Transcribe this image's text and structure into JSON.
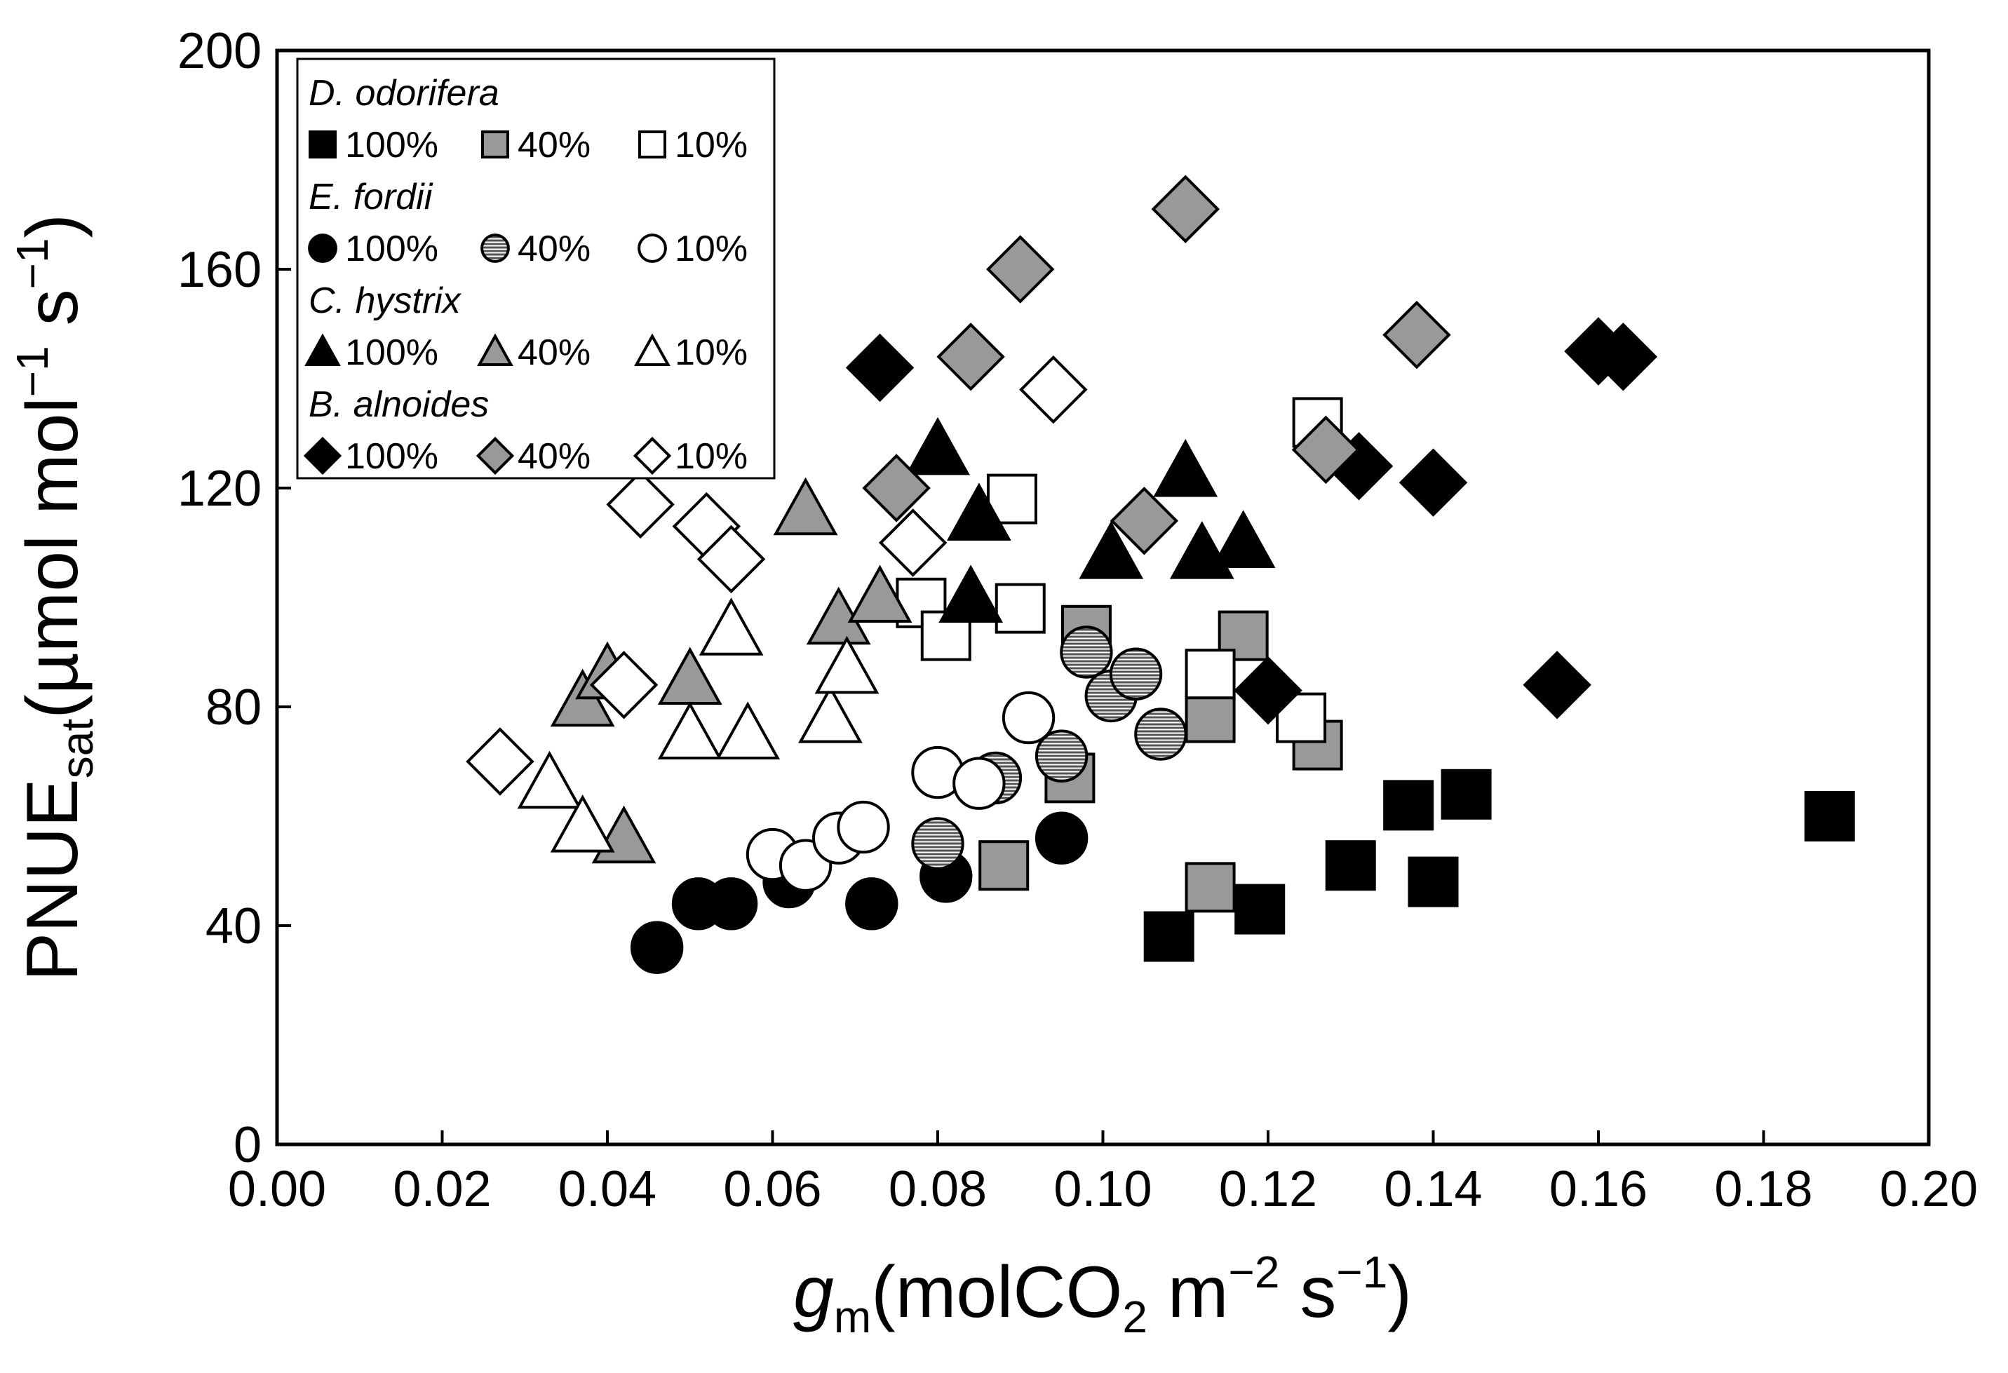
{
  "chart_data": {
    "type": "scatter",
    "title": "",
    "xlabel": {
      "main": "g",
      "sub": "m",
      "rest1": "(molCO",
      "sub2": "2",
      "rest2": " m",
      "sup1": "−2",
      "rest3": " s",
      "sup2": "−1",
      "close": ")"
    },
    "ylabel": {
      "main": "PNUE",
      "sub": "sat",
      "rest1": "(µmol mol",
      "sup1": "−1",
      "rest2": " s",
      "sup2": "−1",
      "close": ")"
    },
    "xlim": [
      0,
      0.2
    ],
    "ylim": [
      0,
      200
    ],
    "x_ticks": [
      "0.00",
      "0.02",
      "0.04",
      "0.06",
      "0.08",
      "0.10",
      "0.12",
      "0.14",
      "0.16",
      "0.18",
      "0.20"
    ],
    "y_ticks": [
      "0",
      "40",
      "80",
      "120",
      "160",
      "200"
    ],
    "grid": false,
    "legend_position": "top-left",
    "legend": [
      {
        "species": "D. odorifera",
        "marker": "square",
        "entries": [
          "100%",
          "40%",
          "10%"
        ]
      },
      {
        "species": "E. fordii",
        "marker": "circle",
        "entries": [
          "100%",
          "40%",
          "10%"
        ]
      },
      {
        "species": "C. hystrix",
        "marker": "triangle",
        "entries": [
          "100%",
          "40%",
          "10%"
        ]
      },
      {
        "species": "B. alnoides",
        "marker": "diamond",
        "entries": [
          "100%",
          "40%",
          "10%"
        ]
      }
    ],
    "fills": {
      "100%": "#000000",
      "40%": "#999999",
      "10%": "#ffffff"
    },
    "series": [
      {
        "species": "D. odorifera",
        "light": "100%",
        "marker": "square",
        "fill": "solid",
        "points": [
          [
            0.108,
            38
          ],
          [
            0.119,
            43
          ],
          [
            0.13,
            51
          ],
          [
            0.137,
            62
          ],
          [
            0.14,
            48
          ],
          [
            0.144,
            64
          ],
          [
            0.188,
            60
          ]
        ]
      },
      {
        "species": "D. odorifera",
        "light": "40%",
        "marker": "square",
        "fill": "gray",
        "points": [
          [
            0.088,
            51
          ],
          [
            0.096,
            67
          ],
          [
            0.098,
            94
          ],
          [
            0.113,
            47
          ],
          [
            0.113,
            78
          ],
          [
            0.117,
            93
          ],
          [
            0.126,
            73
          ]
        ]
      },
      {
        "species": "D. odorifera",
        "light": "10%",
        "marker": "square",
        "fill": "open",
        "points": [
          [
            0.078,
            99
          ],
          [
            0.081,
            93
          ],
          [
            0.089,
            118
          ],
          [
            0.09,
            98
          ],
          [
            0.113,
            86
          ],
          [
            0.124,
            78
          ],
          [
            0.126,
            132
          ]
        ]
      },
      {
        "species": "E. fordii",
        "light": "100%",
        "marker": "circle",
        "fill": "solid",
        "points": [
          [
            0.046,
            36
          ],
          [
            0.051,
            44
          ],
          [
            0.055,
            44
          ],
          [
            0.062,
            48
          ],
          [
            0.072,
            44
          ],
          [
            0.081,
            49
          ],
          [
            0.095,
            56
          ]
        ]
      },
      {
        "species": "E. fordii",
        "light": "40%",
        "marker": "circle",
        "fill": "hatched",
        "points": [
          [
            0.08,
            55
          ],
          [
            0.087,
            67
          ],
          [
            0.095,
            71
          ],
          [
            0.098,
            90
          ],
          [
            0.101,
            82
          ],
          [
            0.104,
            86
          ],
          [
            0.107,
            75
          ]
        ]
      },
      {
        "species": "E. fordii",
        "light": "10%",
        "marker": "circle",
        "fill": "open",
        "points": [
          [
            0.06,
            53
          ],
          [
            0.064,
            51
          ],
          [
            0.068,
            56
          ],
          [
            0.071,
            58
          ],
          [
            0.08,
            68
          ],
          [
            0.085,
            66
          ],
          [
            0.091,
            78
          ]
        ]
      },
      {
        "species": "C. hystrix",
        "light": "100%",
        "marker": "triangle",
        "fill": "solid",
        "points": [
          [
            0.08,
            127
          ],
          [
            0.084,
            100
          ],
          [
            0.085,
            115
          ],
          [
            0.101,
            108
          ],
          [
            0.11,
            123
          ],
          [
            0.112,
            108
          ],
          [
            0.117,
            110
          ]
        ]
      },
      {
        "species": "C. hystrix",
        "light": "40%",
        "marker": "triangle",
        "fill": "gray",
        "points": [
          [
            0.037,
            81
          ],
          [
            0.04,
            86
          ],
          [
            0.042,
            56
          ],
          [
            0.05,
            85
          ],
          [
            0.064,
            116
          ],
          [
            0.068,
            96
          ],
          [
            0.073,
            100
          ]
        ]
      },
      {
        "species": "C. hystrix",
        "light": "10%",
        "marker": "triangle",
        "fill": "open",
        "points": [
          [
            0.033,
            66
          ],
          [
            0.037,
            58
          ],
          [
            0.05,
            75
          ],
          [
            0.055,
            94
          ],
          [
            0.057,
            75
          ],
          [
            0.067,
            78
          ],
          [
            0.069,
            87
          ]
        ]
      },
      {
        "species": "B. alnoides",
        "light": "100%",
        "marker": "diamond",
        "fill": "solid",
        "points": [
          [
            0.073,
            142
          ],
          [
            0.12,
            83
          ],
          [
            0.131,
            124
          ],
          [
            0.14,
            121
          ],
          [
            0.155,
            84
          ],
          [
            0.16,
            145
          ],
          [
            0.163,
            144
          ]
        ]
      },
      {
        "species": "B. alnoides",
        "light": "40%",
        "marker": "diamond",
        "fill": "gray",
        "points": [
          [
            0.075,
            120
          ],
          [
            0.084,
            144
          ],
          [
            0.09,
            160
          ],
          [
            0.105,
            114
          ],
          [
            0.11,
            171
          ],
          [
            0.127,
            127
          ],
          [
            0.138,
            148
          ]
        ]
      },
      {
        "species": "B. alnoides",
        "light": "10%",
        "marker": "diamond",
        "fill": "open",
        "points": [
          [
            0.027,
            70
          ],
          [
            0.042,
            84
          ],
          [
            0.044,
            117
          ],
          [
            0.052,
            113
          ],
          [
            0.055,
            107
          ],
          [
            0.077,
            110
          ],
          [
            0.094,
            138
          ]
        ]
      }
    ]
  }
}
